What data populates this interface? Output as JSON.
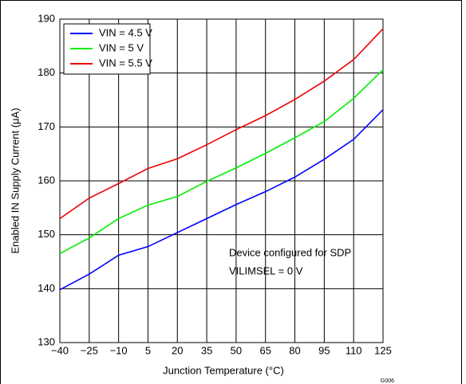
{
  "chart_data": {
    "type": "line",
    "x_label": "Junction Temperature (°C)",
    "y_label": "Enabled IN Supply Current (μA)",
    "x": [
      -40,
      -25,
      -10,
      5,
      20,
      35,
      50,
      65,
      80,
      95,
      110,
      125
    ],
    "series": [
      {
        "name": "VIN = 4.5 V",
        "color": "#0000ff",
        "values": [
          139.8,
          142.7,
          146.2,
          147.8,
          150.4,
          153.0,
          155.6,
          158.0,
          160.7,
          164.0,
          167.7,
          173.2
        ]
      },
      {
        "name": "VIN = 5 V",
        "color": "#00ee00",
        "values": [
          146.5,
          149.4,
          153.0,
          155.5,
          157.1,
          159.9,
          162.4,
          165.1,
          168.0,
          171.0,
          175.3,
          180.6
        ]
      },
      {
        "name": "VIN = 5.5 V",
        "color": "#ee0000",
        "values": [
          153.0,
          156.8,
          159.5,
          162.3,
          164.1,
          166.7,
          169.5,
          172.1,
          175.1,
          178.5,
          182.5,
          188.2
        ]
      }
    ],
    "xlim": [
      -40,
      125
    ],
    "xticks": [
      {
        "value": -40,
        "label": "−40"
      },
      {
        "value": -25,
        "label": "−25"
      },
      {
        "value": -10,
        "label": "−10"
      },
      5,
      20,
      35,
      50,
      65,
      80,
      95,
      110,
      125
    ],
    "ylim": [
      130,
      190
    ],
    "yticks": [
      130,
      140,
      150,
      160,
      170,
      180,
      190
    ],
    "grid": true,
    "legend": "top-left",
    "annotations": [
      "Device configured for SDP",
      "VILIMSEL = 0 V"
    ],
    "figure_id": "G006"
  }
}
